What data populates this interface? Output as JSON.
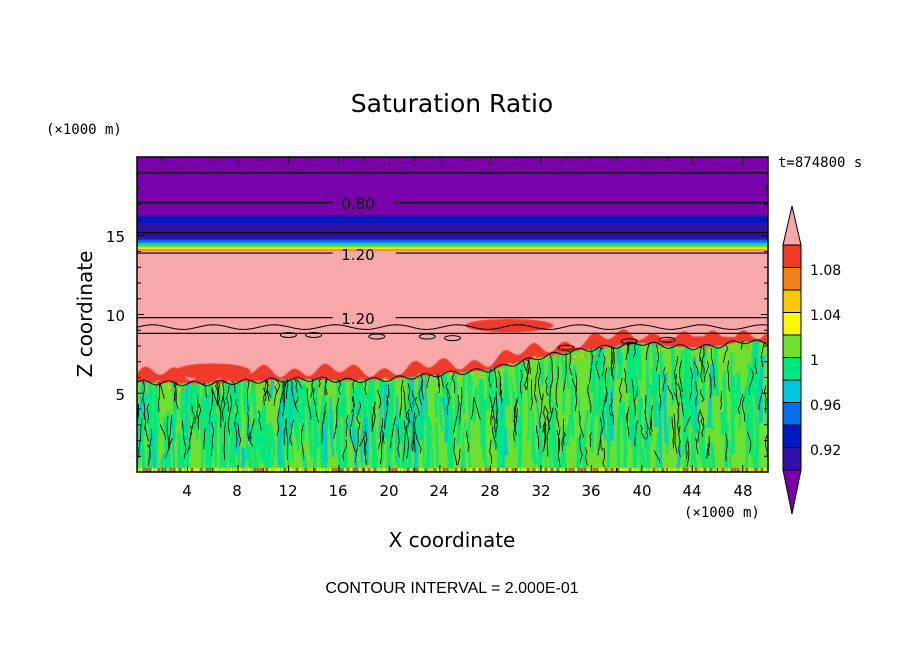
{
  "chart_data": {
    "type": "contour",
    "title": "Saturation Ratio",
    "xlabel": "X coordinate",
    "ylabel": "Z coordinate",
    "x_units": "(×1000 m)",
    "y_units": "(×1000 m)",
    "time_label": "t=874800 s",
    "footer": "CONTOUR INTERVAL = 2.000E-01",
    "xlim": [
      0,
      50
    ],
    "ylim": [
      0,
      20
    ],
    "x_ticks": [
      "4",
      "8",
      "12",
      "16",
      "20",
      "24",
      "28",
      "32",
      "36",
      "40",
      "44",
      "48"
    ],
    "y_ticks": [
      "5",
      "10",
      "15"
    ],
    "colorbar_labels": [
      "1.08",
      "1.04",
      "1",
      "0.96",
      "0.92"
    ],
    "contour_labels": [
      {
        "text": "0.80",
        "x": 18,
        "z": 17.1
      },
      {
        "text": "1.20",
        "x": 18,
        "z": 13.9
      },
      {
        "text": "1.20",
        "x": 18,
        "z": 9.8
      }
    ],
    "colors": {
      "over": "#f8a8a8",
      "c1_08": "#f03a2a",
      "c1_06": "#f08018",
      "c1_04": "#f8c800",
      "c1_02": "#f8f800",
      "c1_00": "#70e030",
      "c0_98": "#00e880",
      "c0_96": "#00c8d8",
      "c0_94": "#0070f0",
      "c0_92": "#0018c0",
      "c0_90": "#3010a8",
      "under": "#7800a8"
    }
  }
}
